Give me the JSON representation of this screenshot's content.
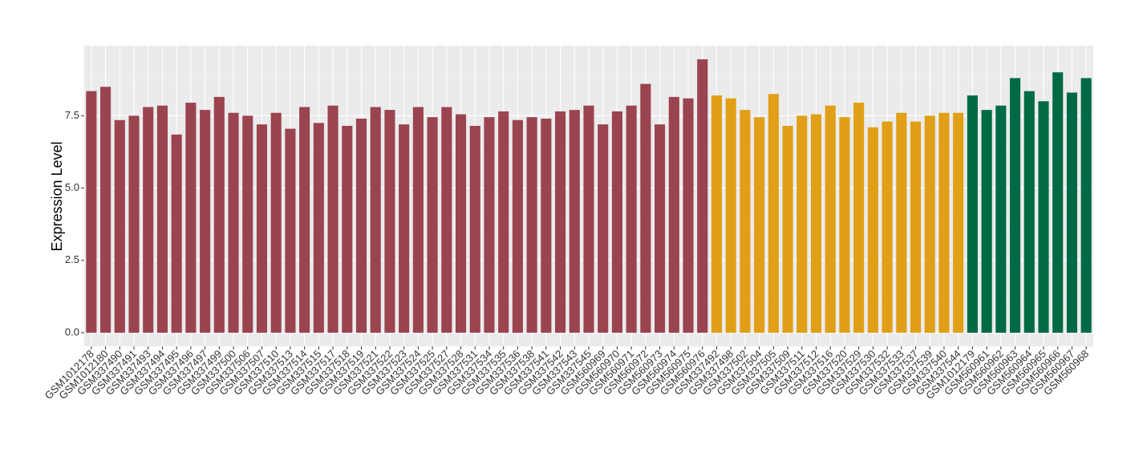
{
  "chart_data": {
    "type": "bar",
    "y_label": "Expression Level",
    "categories": [
      "GSM1012178",
      "GSM1012180",
      "GSM337490",
      "GSM337491",
      "GSM337493",
      "GSM337494",
      "GSM337495",
      "GSM337496",
      "GSM337497",
      "GSM337499",
      "GSM337500",
      "GSM337506",
      "GSM337507",
      "GSM337510",
      "GSM337513",
      "GSM337514",
      "GSM337515",
      "GSM337517",
      "GSM337518",
      "GSM337519",
      "GSM337521",
      "GSM337522",
      "GSM337523",
      "GSM337524",
      "GSM337525",
      "GSM337527",
      "GSM337528",
      "GSM337531",
      "GSM337534",
      "GSM337535",
      "GSM337536",
      "GSM337538",
      "GSM337541",
      "GSM337542",
      "GSM337543",
      "GSM337545",
      "GSM560969",
      "GSM560970",
      "GSM560971",
      "GSM560972",
      "GSM560973",
      "GSM560974",
      "GSM560975",
      "GSM560976",
      "GSM337492",
      "GSM337498",
      "GSM337502",
      "GSM337504",
      "GSM337505",
      "GSM337509",
      "GSM337511",
      "GSM337512",
      "GSM337516",
      "GSM337520",
      "GSM337529",
      "GSM337530",
      "GSM337532",
      "GSM337533",
      "GSM337537",
      "GSM337539",
      "GSM337540",
      "GSM337544",
      "GSM1012179",
      "GSM560961",
      "GSM560962",
      "GSM560963",
      "GSM560964",
      "GSM560965",
      "GSM560966",
      "GSM560967",
      "GSM560968"
    ],
    "values": [
      8.35,
      8.5,
      7.35,
      7.5,
      7.8,
      7.85,
      6.85,
      7.95,
      7.7,
      8.15,
      7.6,
      7.5,
      7.2,
      7.6,
      7.05,
      7.8,
      7.25,
      7.85,
      7.15,
      7.4,
      7.8,
      7.7,
      7.2,
      7.8,
      7.45,
      7.8,
      7.55,
      7.15,
      7.45,
      7.65,
      7.35,
      7.45,
      7.4,
      7.65,
      7.7,
      7.85,
      7.2,
      7.65,
      7.85,
      8.6,
      7.2,
      8.15,
      8.1,
      9.45,
      8.2,
      8.1,
      7.7,
      7.45,
      8.25,
      7.15,
      7.5,
      7.55,
      7.85,
      7.45,
      7.95,
      7.1,
      7.3,
      7.6,
      7.3,
      7.5,
      7.6,
      7.6,
      8.2,
      7.7,
      7.85,
      8.8,
      8.35,
      8.0,
      9.0,
      8.3,
      8.8
    ],
    "colors": [
      "#9a4450",
      "#9a4450",
      "#9a4450",
      "#9a4450",
      "#9a4450",
      "#9a4450",
      "#9a4450",
      "#9a4450",
      "#9a4450",
      "#9a4450",
      "#9a4450",
      "#9a4450",
      "#9a4450",
      "#9a4450",
      "#9a4450",
      "#9a4450",
      "#9a4450",
      "#9a4450",
      "#9a4450",
      "#9a4450",
      "#9a4450",
      "#9a4450",
      "#9a4450",
      "#9a4450",
      "#9a4450",
      "#9a4450",
      "#9a4450",
      "#9a4450",
      "#9a4450",
      "#9a4450",
      "#9a4450",
      "#9a4450",
      "#9a4450",
      "#9a4450",
      "#9a4450",
      "#9a4450",
      "#9a4450",
      "#9a4450",
      "#9a4450",
      "#9a4450",
      "#9a4450",
      "#9a4450",
      "#9a4450",
      "#9a4450",
      "#e09f16",
      "#e09f16",
      "#e09f16",
      "#e09f16",
      "#e09f16",
      "#e09f16",
      "#e09f16",
      "#e09f16",
      "#e09f16",
      "#e09f16",
      "#e09f16",
      "#e09f16",
      "#e09f16",
      "#e09f16",
      "#e09f16",
      "#e09f16",
      "#e09f16",
      "#e09f16",
      "#006a44",
      "#006a44",
      "#006a44",
      "#006a44",
      "#006a44",
      "#006a44",
      "#006a44",
      "#006a44",
      "#006a44"
    ],
    "ylim": [
      -0.47,
      9.92
    ],
    "yticks": [
      {
        "value": 0,
        "label": "0.0"
      },
      2.5,
      {
        "value": 5,
        "label": "5.0"
      },
      7.5
    ],
    "grid": true
  }
}
